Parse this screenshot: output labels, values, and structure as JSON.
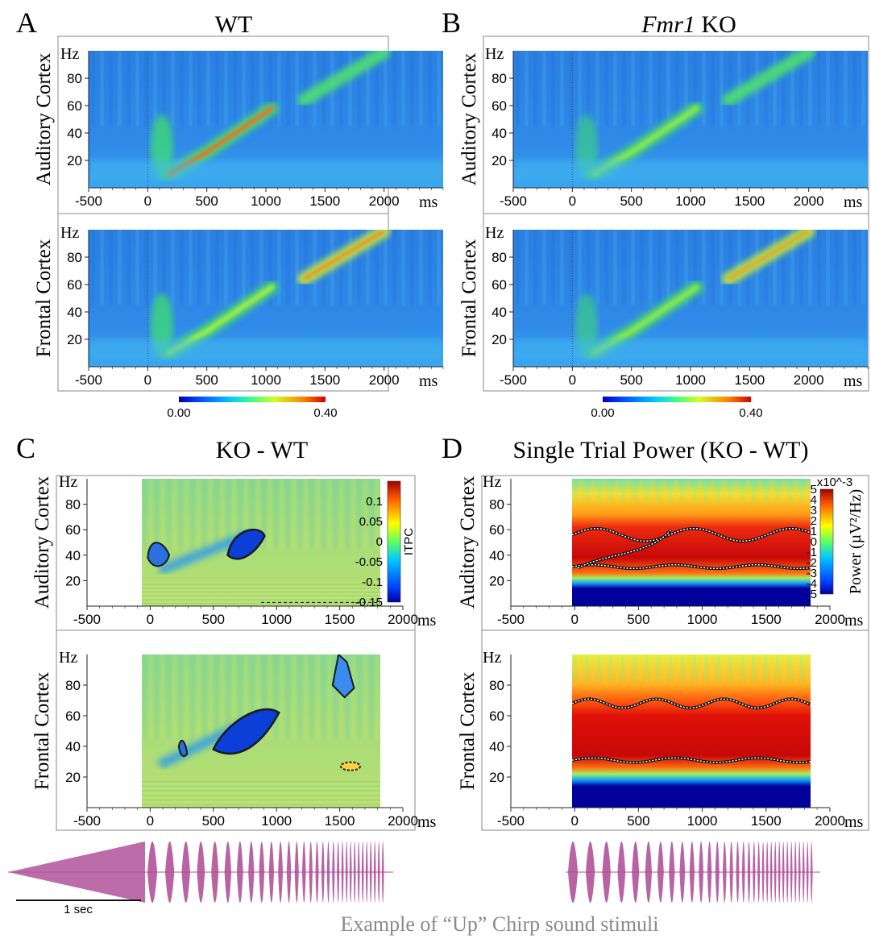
{
  "chart_data": [
    {
      "type": "heatmap",
      "panel_label": "A",
      "title": "WT",
      "rows": [
        "Auditory Cortex",
        "Frontal Cortex"
      ],
      "ylabel_unit": "Hz",
      "xlabel_unit": "ms",
      "x_ticks": [
        "-500",
        "0",
        "500",
        "1000",
        "1500",
        "2000"
      ],
      "y_ticks": [
        "20",
        "40",
        "60",
        "80"
      ],
      "xlim": [
        -500,
        2500
      ],
      "ylim": [
        0,
        100
      ],
      "colorbar": {
        "min_label": "0.00",
        "max_label": "0.40",
        "range": [
          0,
          0.4
        ]
      },
      "chirp_ridge": [
        [
          200,
          12
        ],
        [
          500,
          25
        ],
        [
          1000,
          55
        ],
        [
          1300,
          62
        ],
        [
          2000,
          100
        ]
      ]
    },
    {
      "type": "heatmap",
      "panel_label": "B",
      "title_italic": "Fmr1",
      "title_rest": " KO",
      "rows": [
        "Auditory Cortex",
        "Frontal Cortex"
      ],
      "ylabel_unit": "Hz",
      "xlabel_unit": "ms",
      "x_ticks": [
        "-500",
        "0",
        "500",
        "1000",
        "1500",
        "2000"
      ],
      "y_ticks": [
        "20",
        "40",
        "60",
        "80"
      ],
      "xlim": [
        -500,
        2500
      ],
      "ylim": [
        0,
        100
      ],
      "colorbar": {
        "min_label": "0.00",
        "max_label": "0.40",
        "range": [
          0,
          0.4
        ]
      }
    },
    {
      "type": "heatmap",
      "panel_label": "C",
      "title": "KO - WT",
      "rows": [
        "Auditory Cortex",
        "Frontal Cortex"
      ],
      "ylabel_unit": "Hz",
      "xlabel_unit": "ms",
      "x_ticks": [
        "-500",
        "0",
        "500",
        "1000",
        "1500",
        "2000"
      ],
      "y_ticks": [
        "20",
        "40",
        "60",
        "80"
      ],
      "xlim": [
        -500,
        2000
      ],
      "ylim": [
        0,
        100
      ],
      "colorbar": {
        "label": "ITPC",
        "ticks": [
          "0.1",
          "0.05",
          "0",
          "-0.05",
          "-0.1",
          "-0.15"
        ],
        "range": [
          -0.15,
          0.15
        ]
      }
    },
    {
      "type": "heatmap",
      "panel_label": "D",
      "title": "Single Trial Power (KO - WT)",
      "rows": [
        "Auditory Cortex",
        "Frontal Cortex"
      ],
      "ylabel_unit": "Hz",
      "xlabel_unit": "ms",
      "x_ticks": [
        "-500",
        "0",
        "500",
        "1000",
        "1500",
        "2000"
      ],
      "y_ticks": [
        "20",
        "40",
        "60",
        "80"
      ],
      "xlim": [
        -500,
        2000
      ],
      "ylim": [
        0,
        100
      ],
      "colorbar": {
        "label": "Power  (µV²/Hz)",
        "exponent": "x10^-3",
        "ticks": [
          "5",
          "4",
          "3",
          "2",
          "1",
          "0",
          "-1",
          "-2",
          "-3",
          "-4",
          "-5"
        ],
        "range": [
          -5,
          5
        ]
      }
    }
  ],
  "stimulus": {
    "scale_bar": "1 sec",
    "caption": "Example of “Up” Chirp sound stimuli",
    "color": "#b0529a"
  }
}
